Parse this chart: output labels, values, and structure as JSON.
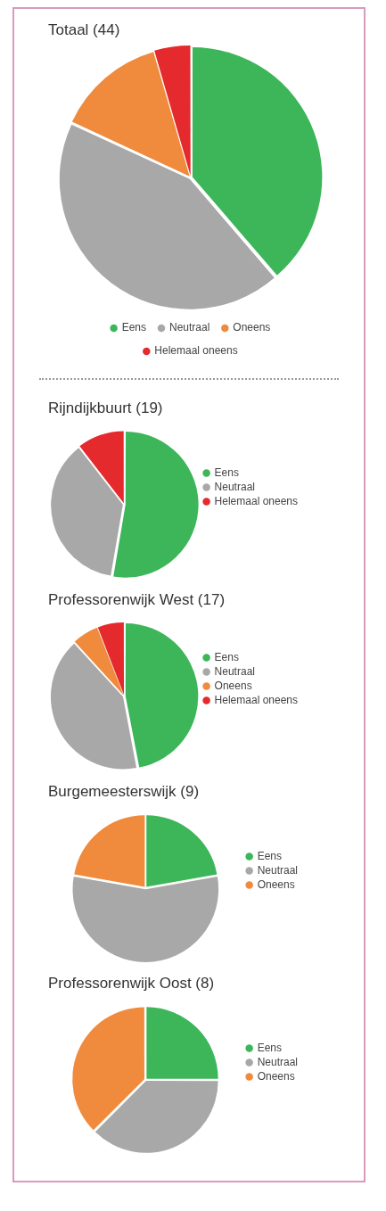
{
  "chart_data": [
    {
      "type": "pie",
      "title": "Totaal (44)",
      "categories": [
        "Eens",
        "Neutraal",
        "Oneens",
        "Helemaal oneens"
      ],
      "values": [
        38.7,
        43.2,
        13.6,
        4.5
      ],
      "colors": [
        "#3db65a",
        "#a8a8a8",
        "#f08a3c",
        "#e52a2e"
      ],
      "legend": "bottom"
    },
    {
      "type": "pie",
      "title": "Rijndijkbuurt (19)",
      "categories": [
        "Eens",
        "Neutraal",
        "Helemaal oneens"
      ],
      "values": [
        52.7,
        36.8,
        10.5
      ],
      "colors": [
        "#3db65a",
        "#a8a8a8",
        "#e52a2e"
      ],
      "legend": "right"
    },
    {
      "type": "pie",
      "title": "Professorenwijk West (17)",
      "categories": [
        "Eens",
        "Neutraal",
        "Oneens",
        "Helemaal oneens"
      ],
      "values": [
        47.0,
        41.2,
        5.9,
        5.9
      ],
      "colors": [
        "#3db65a",
        "#a8a8a8",
        "#f08a3c",
        "#e52a2e"
      ],
      "legend": "right"
    },
    {
      "type": "pie",
      "title": "Burgemeesterswijk (9)",
      "categories": [
        "Eens",
        "Neutraal",
        "Oneens"
      ],
      "values": [
        22.2,
        55.6,
        22.2
      ],
      "colors": [
        "#3db65a",
        "#a8a8a8",
        "#f08a3c"
      ],
      "legend": "right"
    },
    {
      "type": "pie",
      "title": "Professorenwijk Oost (8)",
      "categories": [
        "Eens",
        "Neutraal",
        "Oneens"
      ],
      "values": [
        25,
        37.5,
        37.5
      ],
      "colors": [
        "#3db65a",
        "#a8a8a8",
        "#f08a3c"
      ],
      "legend": "right"
    }
  ]
}
